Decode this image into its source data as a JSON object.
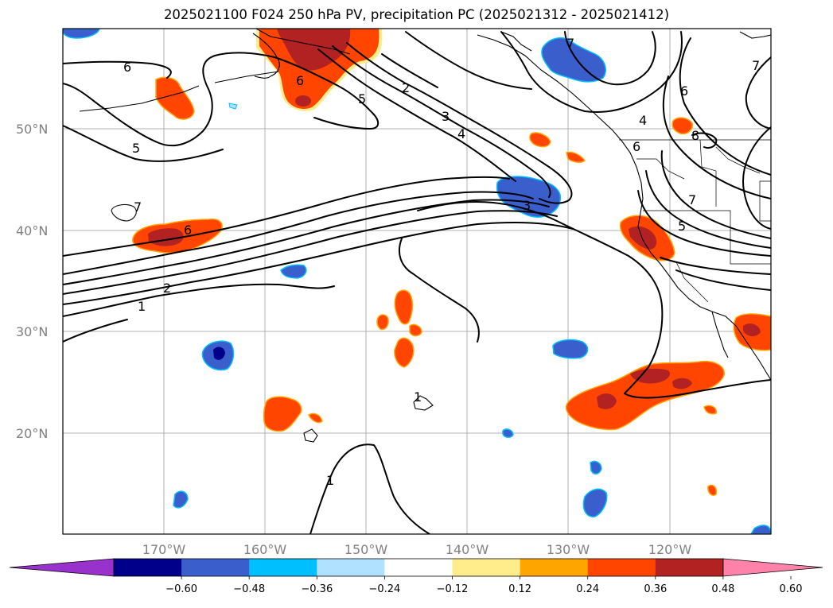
{
  "title": "2025021100 F024 250 hPa PV, precipitation PC (2025021312 - 2025021412)",
  "map": {
    "lat_ticks": [
      "50°N",
      "40°N",
      "30°N",
      "20°N"
    ],
    "lon_ticks": [
      "170°W",
      "160°W",
      "150°W",
      "140°W",
      "130°W",
      "120°W"
    ],
    "contour_labels": [
      "6",
      "5",
      "2",
      "3",
      "4",
      "6",
      "5",
      "7",
      "6",
      "2",
      "1",
      "3",
      "1",
      "1",
      "4",
      "6",
      "7",
      "5",
      "7",
      "6",
      "7",
      "8"
    ]
  },
  "colorbar": {
    "colors": [
      "#9932cc",
      "#00008b",
      "#3a5fcd",
      "#00bfff",
      "#b0e2ff",
      "#ffffff",
      "#ffec8b",
      "#ffa500",
      "#ff4500",
      "#b22222",
      "#ff82ab"
    ],
    "tick_labels": [
      "−0.60",
      "−0.48",
      "−0.36",
      "−0.24",
      "−0.12",
      "0.12",
      "0.24",
      "0.36",
      "0.48",
      "0.60"
    ]
  }
}
